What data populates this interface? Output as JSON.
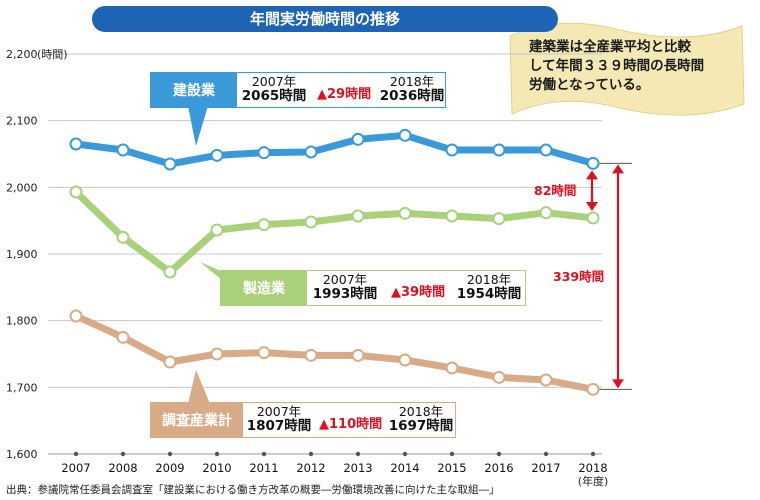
{
  "title": "年間実労働時間の推移",
  "note": [
    "建築業は全産業平均と比較",
    "して年間３３９時間の長時間",
    "労働となっている。"
  ],
  "source": "出典：参議院常任委員会調査室「建設業における働き方改革の概要―労働環境改善に向けた主な取組―」",
  "callouts": [
    {
      "label": "建設業",
      "year_a": "2007年",
      "value_a": "2065時間",
      "delta": "29時間",
      "year_b": "2018年",
      "value_b": "2036時間"
    },
    {
      "label": "製造業",
      "year_a": "2007年",
      "value_a": "1993時間",
      "delta": "39時間",
      "year_b": "2018年",
      "value_b": "1954時間"
    },
    {
      "label": "調査産業計",
      "year_a": "2007年",
      "value_a": "1807時間",
      "delta": "110時間",
      "year_b": "2018年",
      "value_b": "1697時間"
    }
  ],
  "diff_labels": {
    "construction_vs_manufacturing": "82時間",
    "construction_vs_all": "339時間"
  },
  "colors": {
    "construction": "#3a9ad9",
    "manufacturing": "#a8d17a",
    "all_industries": "#d9aa86",
    "title": "#1e64b4",
    "diff": "#e01020"
  },
  "chart_data": {
    "type": "line",
    "x": [
      2007,
      2008,
      2009,
      2010,
      2011,
      2012,
      2013,
      2014,
      2015,
      2016,
      2017,
      2018
    ],
    "ylim": [
      1600,
      2200
    ],
    "yticks": [
      1600,
      1700,
      1800,
      1900,
      2000,
      2100,
      2200
    ],
    "ytick_labels": [
      "1,600",
      "1,700",
      "1,800",
      "1,900",
      "2,000",
      "2,100",
      "2,200"
    ],
    "ylabel": "(時間)",
    "xlabel": "(年度)",
    "grid": "horizontal",
    "series": [
      {
        "name": "建設業",
        "values": [
          2065,
          2056,
          2035,
          2048,
          2052,
          2053,
          2072,
          2078,
          2056,
          2056,
          2056,
          2036
        ]
      },
      {
        "name": "製造業",
        "values": [
          1993,
          1925,
          1873,
          1936,
          1944,
          1948,
          1957,
          1961,
          1957,
          1953,
          1962,
          1954
        ]
      },
      {
        "name": "調査産業計",
        "values": [
          1807,
          1775,
          1738,
          1750,
          1752,
          1748,
          1748,
          1741,
          1729,
          1715,
          1711,
          1697
        ]
      }
    ]
  }
}
